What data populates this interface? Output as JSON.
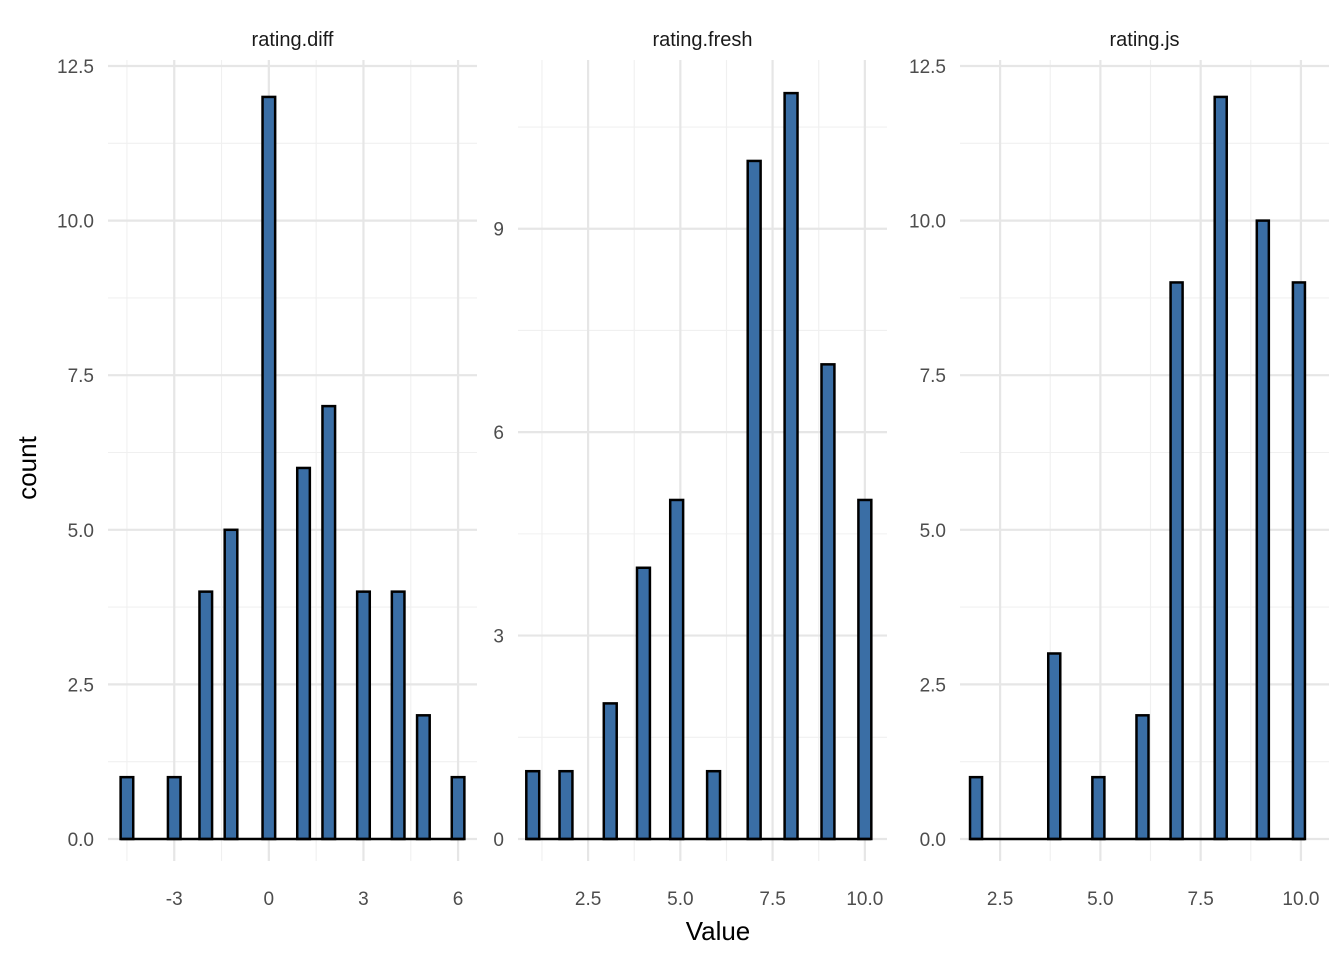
{
  "chart_data": {
    "type": "bar",
    "xlabel": "Value",
    "ylabel": "count",
    "grid": true,
    "legend": "none",
    "bar_color": "#3a6ea5",
    "bar_outline_color": "#000000",
    "panels": [
      {
        "title": "rating.diff",
        "xlim": [
          -5.1,
          6.6
        ],
        "ylim": [
          0,
          12.5
        ],
        "xticks": [
          -3,
          0,
          3,
          6
        ],
        "xtick_labels": [
          "-3",
          "0",
          "3",
          "6"
        ],
        "xminor": [
          -4.5,
          -1.5,
          1.5,
          4.5
        ],
        "yticks": [
          0,
          2.5,
          5,
          7.5,
          10,
          12.5
        ],
        "ytick_labels": [
          "0.0",
          "2.5",
          "5.0",
          "7.5",
          "10.0",
          "12.5"
        ],
        "bar_width": 0.4,
        "x": [
          -4.5,
          -3.5,
          -3,
          -2,
          -1.2,
          0,
          1.1,
          1.9,
          3,
          4.1,
          4.9,
          6
        ],
        "values": [
          1,
          0,
          1,
          4,
          5,
          12,
          6,
          7,
          4,
          4,
          2,
          1
        ]
      },
      {
        "title": "rating.fresh",
        "xlim": [
          0.6,
          10.6
        ],
        "ylim": [
          0,
          11.4
        ],
        "xticks": [
          2.5,
          5.0,
          7.5,
          10.0
        ],
        "xtick_labels": [
          "2.5",
          "5.0",
          "7.5",
          "10.0"
        ],
        "xminor": [
          1.25,
          3.75,
          6.25,
          8.75
        ],
        "yticks": [
          0,
          3,
          6,
          9
        ],
        "ytick_labels": [
          "0",
          "3",
          "6",
          "9"
        ],
        "yminor": [
          1.5,
          4.5,
          7.5,
          10.5
        ],
        "bar_width": 0.35,
        "x": [
          1,
          1.9,
          3.1,
          4,
          4.9,
          5.9,
          7,
          8,
          9,
          10
        ],
        "values": [
          1,
          1,
          2,
          4,
          5,
          1,
          10,
          11,
          7,
          5
        ]
      },
      {
        "title": "rating.js",
        "xlim": [
          1.5,
          10.7
        ],
        "ylim": [
          0,
          12.5
        ],
        "xticks": [
          2.5,
          5.0,
          7.5,
          10.0
        ],
        "xtick_labels": [
          "2.5",
          "5.0",
          "7.5",
          "10.0"
        ],
        "xminor": [
          1.25,
          3.75,
          6.25,
          8.75
        ],
        "yticks": [
          0,
          2.5,
          5,
          7.5,
          10,
          12.5
        ],
        "ytick_labels": [
          "0.0",
          "2.5",
          "5.0",
          "7.5",
          "10.0",
          "12.5"
        ],
        "bar_width": 0.3,
        "x": [
          1.9,
          3.85,
          4.95,
          6.05,
          6.9,
          8,
          9.05,
          9.95
        ],
        "values": [
          1,
          3,
          1,
          2,
          9,
          12,
          10,
          9
        ]
      }
    ]
  }
}
